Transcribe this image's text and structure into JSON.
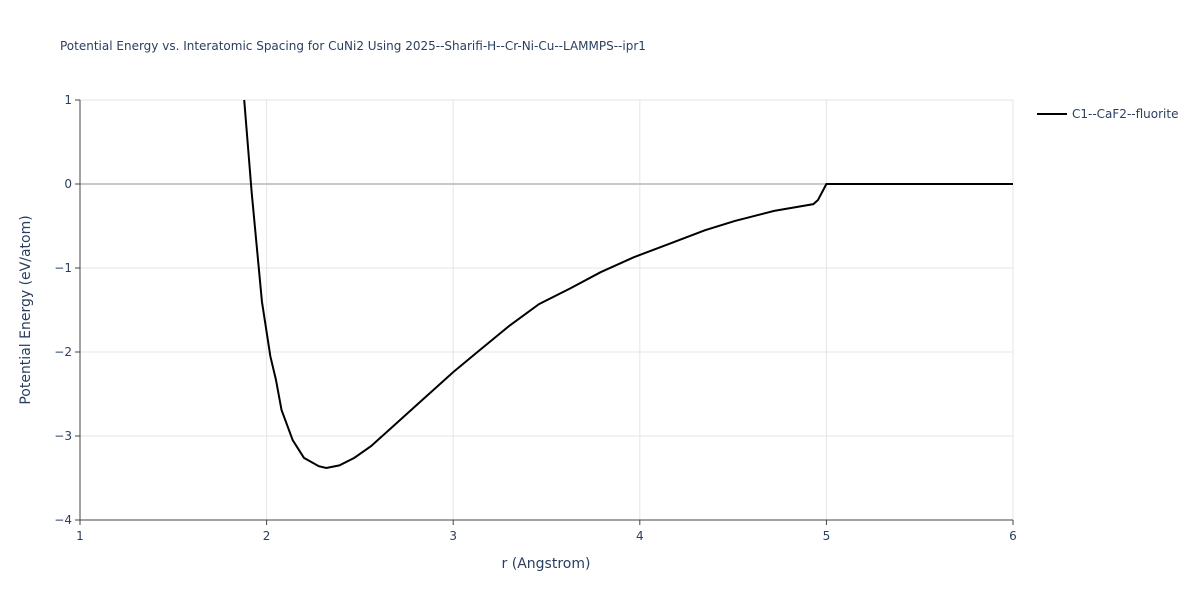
{
  "chart_data": {
    "type": "line",
    "title": "Potential Energy vs. Interatomic Spacing for CuNi2 Using 2025--Sharifi-H--Cr-Ni-Cu--LAMMPS--ipr1",
    "x_label": "r (Angstrom)",
    "y_label": "Potential Energy (eV/atom)",
    "xlim": [
      1,
      6
    ],
    "ylim": [
      -4,
      1
    ],
    "xticks": [
      1,
      2,
      3,
      4,
      5,
      6
    ],
    "yticks": [
      {
        "value": -4,
        "label": "−4"
      },
      {
        "value": -3,
        "label": "−3"
      },
      {
        "value": -2,
        "label": "−2"
      },
      {
        "value": -1,
        "label": "−1"
      },
      0,
      1
    ],
    "grid": true,
    "legend": "right",
    "x": [
      1.88,
      1.9,
      1.92,
      1.975,
      2.02,
      2.05,
      2.08,
      2.14,
      2.2,
      2.28,
      2.32,
      2.39,
      2.47,
      2.56,
      2.67,
      2.82,
      3.0,
      3.13,
      3.3,
      3.46,
      3.63,
      3.79,
      3.97,
      4.16,
      4.35,
      4.51,
      4.72,
      4.93,
      4.955,
      5.0,
      6.0
    ],
    "series": [
      {
        "name": "C1--CaF2--fluorite",
        "color": "#000000",
        "values": [
          1,
          0.45,
          -0.1,
          -1.4,
          -2.05,
          -2.33,
          -2.69,
          -3.05,
          -3.26,
          -3.36,
          -3.38,
          -3.35,
          -3.26,
          -3.12,
          -2.9,
          -2.6,
          -2.24,
          -2.0,
          -1.69,
          -1.43,
          -1.24,
          -1.05,
          -0.87,
          -0.71,
          -0.55,
          -0.44,
          -0.32,
          -0.24,
          -0.19,
          0,
          0
        ]
      }
    ]
  }
}
